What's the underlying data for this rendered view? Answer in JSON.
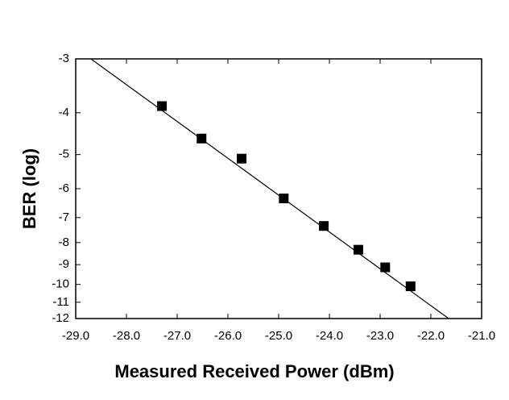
{
  "chart_data": {
    "type": "scatter",
    "x_label": "Measured Received Power (dBm)",
    "y_label": "BER (log)",
    "yscale": "loglog",
    "color": "#000000",
    "xlim": [
      -29.0,
      -21.0
    ],
    "ylim": [
      -3,
      -12
    ],
    "xticks": [
      {
        "value": -29,
        "label": "-29.0"
      },
      {
        "value": -28,
        "label": "-28.0"
      },
      {
        "value": -27,
        "label": "-27.0"
      },
      {
        "value": -26,
        "label": "-26.0"
      },
      {
        "value": -25,
        "label": "-25.0"
      },
      {
        "value": -24,
        "label": "-24.0"
      },
      {
        "value": -23,
        "label": "-23.0"
      },
      {
        "value": -22,
        "label": "-22.0"
      },
      {
        "value": -21,
        "label": "-21.0"
      }
    ],
    "yticks": [
      -3,
      -4,
      -5,
      -6,
      -7,
      -8,
      -9,
      -10,
      -11,
      -12
    ],
    "points": {
      "x": [
        -27.3,
        -26.52,
        -25.73,
        -24.9,
        -24.11,
        -23.43,
        -22.9,
        -22.4
      ],
      "y": [
        -3.86,
        -4.59,
        -5.11,
        -6.32,
        -7.32,
        -8.31,
        -9.13,
        -10.1
      ]
    },
    "fit": {
      "x": [
        -28.7,
        -21.65
      ],
      "y": [
        -3,
        -12
      ]
    }
  }
}
